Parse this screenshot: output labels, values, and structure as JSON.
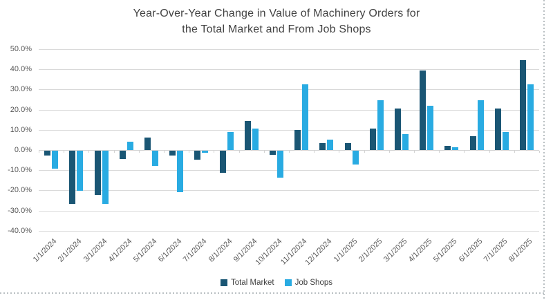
{
  "chart_data": {
    "type": "bar",
    "title": "Year-Over-Year Change in Value of Machinery Orders for\nthe Total Market and From Job Shops",
    "categories": [
      "1/1/2024",
      "2/1/2024",
      "3/1/2024",
      "4/1/2024",
      "5/1/2024",
      "6/1/2024",
      "7/1/2024",
      "8/1/2024",
      "9/1/2024",
      "10/1/2024",
      "11/1/2024",
      "12/1/2024",
      "1/1/2025",
      "2/1/2025",
      "3/1/2025",
      "4/1/2025",
      "5/1/2025",
      "6/1/2025",
      "7/1/2025",
      "8/1/2025"
    ],
    "series": [
      {
        "name": "Total Market",
        "color": "#1a5674",
        "values": [
          -2.5,
          -26.5,
          -22,
          -4,
          6,
          -2.5,
          -4.5,
          -11,
          14.5,
          -2,
          10,
          3.5,
          3.5,
          10.5,
          20.5,
          39.5,
          2,
          7,
          20.5,
          44.5
        ]
      },
      {
        "name": "Job Shops",
        "color": "#29abe2",
        "values": [
          -9,
          -20,
          -26.5,
          4,
          -7.5,
          -20.5,
          -1,
          9,
          10.5,
          -13.5,
          32.5,
          5,
          -7,
          24.5,
          8,
          22,
          1.5,
          24.5,
          9,
          32.5
        ]
      }
    ],
    "ylim": [
      -40,
      50
    ],
    "ytick_step": 10,
    "yticks": [
      {
        "v": 50,
        "label": "50.0%"
      },
      {
        "v": 40,
        "label": "40.0%"
      },
      {
        "v": 30,
        "label": "30.0%"
      },
      {
        "v": 20,
        "label": "20.0%"
      },
      {
        "v": 10,
        "label": "10.0%"
      },
      {
        "v": 0,
        "label": "0.0%"
      },
      {
        "v": -10,
        "label": "-10.0%"
      },
      {
        "v": -20,
        "label": "-20.0%"
      },
      {
        "v": -30,
        "label": "-30.0%"
      },
      {
        "v": -40,
        "label": "-40.0%"
      }
    ],
    "grid": true,
    "legend_position": "bottom",
    "axis_label_color": "#595959",
    "gridline_color": "#d9d9d9",
    "title_color": "#424242"
  }
}
